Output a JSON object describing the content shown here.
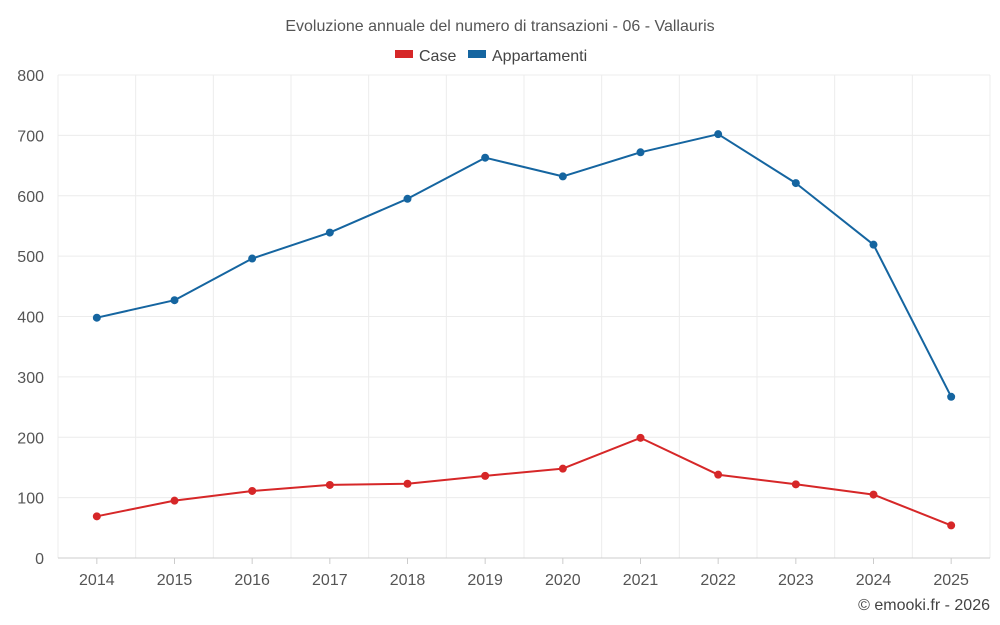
{
  "chart_data": {
    "type": "line",
    "title": "Evoluzione annuale del numero di transazioni - 06 - Vallauris",
    "categories": [
      "2014",
      "2015",
      "2016",
      "2017",
      "2018",
      "2019",
      "2020",
      "2021",
      "2022",
      "2023",
      "2024",
      "2025"
    ],
    "series": [
      {
        "name": "Case",
        "color": "#d62728",
        "values": [
          69,
          95,
          111,
          121,
          123,
          136,
          148,
          199,
          138,
          122,
          105,
          54
        ]
      },
      {
        "name": "Appartamenti",
        "color": "#1565a0",
        "values": [
          398,
          427,
          496,
          539,
          595,
          663,
          632,
          672,
          702,
          621,
          519,
          267
        ]
      }
    ],
    "ylim": [
      0,
      800
    ],
    "yticks": [
      "0",
      "100",
      "200",
      "300",
      "400",
      "500",
      "600",
      "700",
      "800"
    ],
    "xlabel": "",
    "ylabel": "",
    "grid": true,
    "legend": "top-center"
  },
  "credit": "© emooki.fr - 2026"
}
